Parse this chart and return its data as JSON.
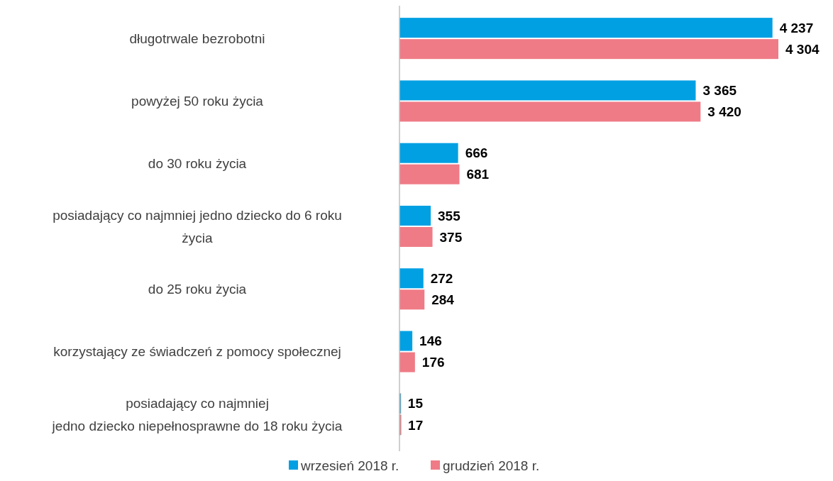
{
  "chart_data": {
    "type": "bar",
    "orientation": "horizontal",
    "categories": [
      "długotrwale bezrobotni",
      "powyżej 50 roku życia",
      "do 30 roku życia",
      "posiadający co najmniej jedno dziecko do 6 roku\nżycia",
      "do 25 roku życia",
      "korzystający ze świadczeń z pomocy społecznej",
      "posiadający co najmniej\njedno dziecko niepełnosprawne do 18 roku życia"
    ],
    "series": [
      {
        "name": "wrzesień 2018 r.",
        "color": "#00a0e3",
        "values": [
          4237,
          3365,
          666,
          355,
          272,
          146,
          15
        ],
        "value_labels": [
          "4 237",
          "3 365",
          "666",
          "355",
          "272",
          "146",
          "15"
        ]
      },
      {
        "name": "grudzień 2018 r.",
        "color": "#ef7b86",
        "values": [
          4304,
          3420,
          681,
          375,
          284,
          176,
          17
        ],
        "value_labels": [
          "4 304",
          "3 420",
          "681",
          "375",
          "284",
          "176",
          "17"
        ]
      }
    ],
    "legend": "bottom"
  }
}
